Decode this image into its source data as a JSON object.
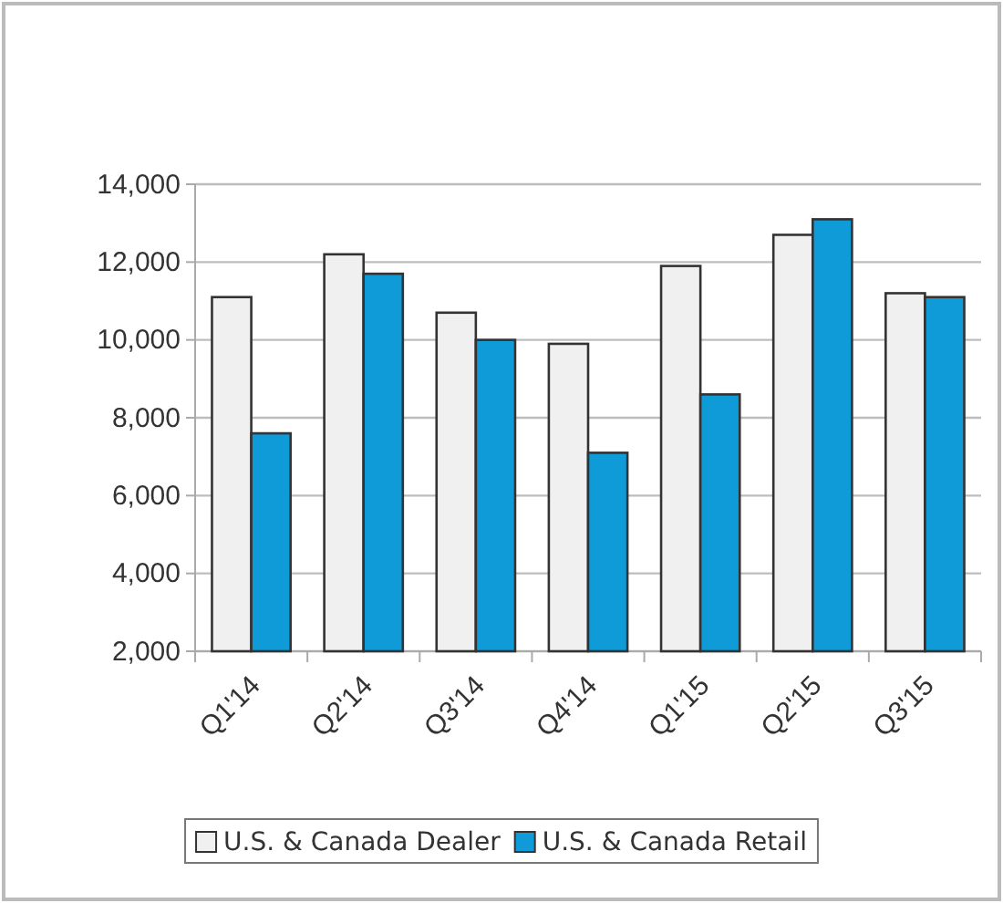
{
  "chart_data": {
    "type": "bar",
    "categories": [
      "Q1'14",
      "Q2'14",
      "Q3'14",
      "Q4'14",
      "Q1'15",
      "Q2'15",
      "Q3'15"
    ],
    "series": [
      {
        "name": "U.S. & Canada Dealer",
        "color": "#f0f0f0",
        "values": [
          11100,
          12200,
          10700,
          9900,
          11900,
          12700,
          11200
        ]
      },
      {
        "name": "U.S. & Canada Retail",
        "color": "#0e9bd8",
        "values": [
          7600,
          11700,
          10000,
          7100,
          8600,
          13100,
          11100
        ]
      }
    ],
    "ylim": [
      2000,
      14000
    ],
    "yticks": [
      {
        "value": 2000,
        "label": "2,000"
      },
      {
        "value": 4000,
        "label": "4,000"
      },
      {
        "value": 6000,
        "label": "6,000"
      },
      {
        "value": 8000,
        "label": "8,000"
      },
      {
        "value": 10000,
        "label": "10,000"
      },
      {
        "value": 12000,
        "label": "12,000"
      },
      {
        "value": 14000,
        "label": "14,000"
      }
    ],
    "grid": "y",
    "legend": "bottom"
  }
}
